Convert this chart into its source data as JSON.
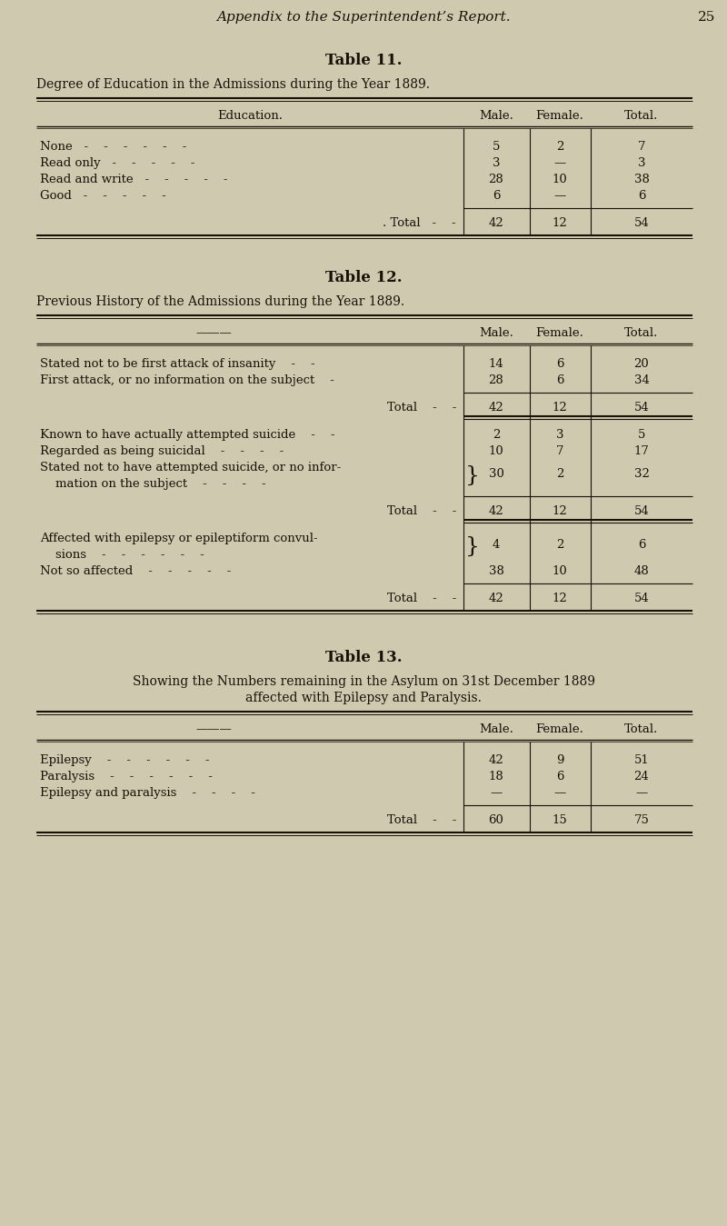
{
  "bg_color": "#cfc9b0",
  "text_color": "#1a1008",
  "page_title": "Appendix to the Superintendent’s Report.",
  "page_number": "25",
  "table11_title": "Table 11.",
  "table11_subtitle": "Degree of Education in the Admissions during the Year 1889.",
  "table11_rows": [
    [
      "None   -    -    -    -    -    -",
      "5",
      "2",
      "7"
    ],
    [
      "Read only   -    -    -    -    -",
      "3",
      "—",
      "3"
    ],
    [
      "Read and write   -    -    -    -    -",
      "28",
      "10",
      "38"
    ],
    [
      "Good   -    -    -    -    -",
      "6",
      "—",
      "6"
    ]
  ],
  "table11_total_row": [
    ". Total   -    -",
    "42",
    "12",
    "54"
  ],
  "table12_title": "Table 12.",
  "table12_subtitle": "Previous History of the Admissions during the Year 1889.",
  "table12_section1_rows": [
    [
      "Stated not to be first attack of insanity    -    -",
      "14",
      "6",
      "20"
    ],
    [
      "First attack, or no information on the subject    -",
      "28",
      "6",
      "34"
    ]
  ],
  "table12_section1_total": [
    "Total    -    -",
    "42",
    "12",
    "54"
  ],
  "table12_section2_rows": [
    [
      "Known to have actually attempted suicide    -    -",
      "2",
      "3",
      "5"
    ],
    [
      "Regarded as being suicidal    -    -    -    -",
      "10",
      "7",
      "17"
    ],
    [
      "Stated not to have attempted suicide, or no infor-",
      "30",
      "2",
      "32"
    ],
    [
      "    mation on the subject    -    -    -    -",
      "",
      "",
      ""
    ]
  ],
  "table12_section2_total": [
    "Total    -    -",
    "42",
    "12",
    "54"
  ],
  "table12_section3_rows": [
    [
      "Affected with epilepsy or epileptiform convul-",
      "4",
      "2",
      "6"
    ],
    [
      "    sions    -    -    -    -    -    -",
      "",
      "",
      ""
    ],
    [
      "Not so affected    -    -    -    -    -",
      "38",
      "10",
      "48"
    ]
  ],
  "table12_section3_total": [
    "Total    -    -",
    "42",
    "12",
    "54"
  ],
  "table13_title": "Table 13.",
  "table13_subtitle1": "Showing the Numbers remaining in the Asylum on 31st December 1889",
  "table13_subtitle2": "affected with Epilepsy and Paralysis.",
  "table13_rows": [
    [
      "Epilepsy    -    -    -    -    -    -",
      "42",
      "9",
      "51"
    ],
    [
      "Paralysis    -    -    -    -    -    -",
      "18",
      "6",
      "24"
    ],
    [
      "Epilepsy and paralysis    -    -    -    -",
      "—",
      "—",
      "—"
    ]
  ],
  "table13_total": [
    "Total    -    -",
    "60",
    "15",
    "75"
  ]
}
